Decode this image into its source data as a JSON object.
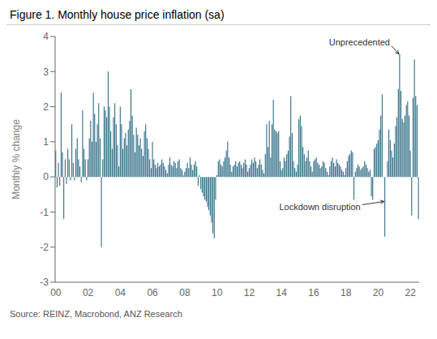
{
  "chart_data": {
    "type": "bar",
    "title": "Figure 1.  Monthly house price inflation (sa)",
    "ylabel": "Monthly % change",
    "source": "Source: REINZ, Macrobond, ANZ Research",
    "color": "#1c5f7a",
    "grid": false,
    "ylim": [
      -3,
      4
    ],
    "yticks": [
      -3,
      -2,
      -1,
      0,
      1,
      2,
      3,
      4
    ],
    "categories": [
      "00",
      null,
      null,
      null,
      null,
      null,
      null,
      null,
      null,
      null,
      null,
      null,
      null,
      null,
      null,
      null,
      null,
      null,
      null,
      null,
      null,
      null,
      null,
      null,
      "02",
      null,
      null,
      null,
      null,
      null,
      null,
      null,
      null,
      null,
      null,
      null,
      null,
      null,
      null,
      null,
      null,
      null,
      null,
      null,
      null,
      null,
      null,
      null,
      "04",
      null,
      null,
      null,
      null,
      null,
      null,
      null,
      null,
      null,
      null,
      null,
      null,
      null,
      null,
      null,
      null,
      null,
      null,
      null,
      null,
      null,
      null,
      null,
      "06",
      null,
      null,
      null,
      null,
      null,
      null,
      null,
      null,
      null,
      null,
      null,
      null,
      null,
      null,
      null,
      null,
      null,
      null,
      null,
      null,
      null,
      null,
      null,
      "08",
      null,
      null,
      null,
      null,
      null,
      null,
      null,
      null,
      null,
      null,
      null,
      null,
      null,
      null,
      null,
      null,
      null,
      null,
      null,
      null,
      null,
      null,
      null,
      "10",
      null,
      null,
      null,
      null,
      null,
      null,
      null,
      null,
      null,
      null,
      null,
      null,
      null,
      null,
      null,
      null,
      null,
      null,
      null,
      null,
      null,
      null,
      null,
      "12",
      null,
      null,
      null,
      null,
      null,
      null,
      null,
      null,
      null,
      null,
      null,
      null,
      null,
      null,
      null,
      null,
      null,
      null,
      null,
      null,
      null,
      null,
      null,
      "14",
      null,
      null,
      null,
      null,
      null,
      null,
      null,
      null,
      null,
      null,
      null,
      null,
      null,
      null,
      null,
      null,
      null,
      null,
      null,
      null,
      null,
      null,
      null,
      "16",
      null,
      null,
      null,
      null,
      null,
      null,
      null,
      null,
      null,
      null,
      null,
      null,
      null,
      null,
      null,
      null,
      null,
      null,
      null,
      null,
      null,
      null,
      null,
      "18",
      null,
      null,
      null,
      null,
      null,
      null,
      null,
      null,
      null,
      null,
      null,
      null,
      null,
      null,
      null,
      null,
      null,
      null,
      null,
      null,
      null,
      null,
      null,
      "20",
      null,
      null,
      null,
      null,
      null,
      null,
      null,
      null,
      null,
      null,
      null,
      null,
      null,
      null,
      null,
      null,
      null,
      null,
      null,
      null,
      null,
      null,
      null,
      "22",
      null,
      null,
      null,
      null,
      null,
      null
    ],
    "values": [
      0.75,
      -0.3,
      0.4,
      -0.25,
      2.4,
      0.7,
      -1.2,
      0.5,
      -0.2,
      0.8,
      0.5,
      -0.1,
      1.5,
      0.4,
      -0.1,
      0.8,
      1.1,
      0.5,
      0.3,
      -0.15,
      1.9,
      0.8,
      0.5,
      -0.1,
      0.5,
      1.1,
      1.6,
      1.0,
      2.4,
      1.8,
      1.0,
      1.5,
      2.1,
      1.1,
      -2.0,
      0.5,
      2.0,
      1.9,
      1.7,
      3.0,
      2.0,
      1.3,
      0.8,
      1.7,
      2.1,
      1.5,
      0.9,
      0.3,
      2.0,
      1.5,
      0.8,
      1.1,
      1.25,
      0.9,
      1.35,
      1.6,
      2.5,
      1.75,
      1.2,
      0.7,
      1.4,
      1.2,
      0.9,
      1.1,
      0.8,
      0.6,
      1.3,
      1.5,
      1.1,
      0.8,
      0.5,
      0.25,
      1.0,
      0.5,
      0.35,
      0.25,
      0.4,
      0.3,
      0.35,
      0.5,
      0.4,
      0.3,
      0.2,
      0.1,
      0.35,
      0.55,
      0.35,
      0.3,
      0.45,
      0.4,
      0.25,
      0.45,
      0.5,
      0.25,
      0.2,
      0.05,
      0.15,
      0.25,
      0.4,
      0.25,
      0.55,
      0.35,
      0.2,
      0.35,
      0.45,
      0.3,
      -0.25,
      0.05,
      -0.35,
      -0.45,
      -0.55,
      -0.65,
      -0.7,
      -0.85,
      -0.95,
      -1.1,
      -1.3,
      -1.6,
      -1.75,
      -0.65,
      0.05,
      0.45,
      0.5,
      0.35,
      0.3,
      0.45,
      0.55,
      0.75,
      1.0,
      0.55,
      0.35,
      0.15,
      0.3,
      0.35,
      0.45,
      0.3,
      0.4,
      0.45,
      0.35,
      0.25,
      0.4,
      0.5,
      0.35,
      0.15,
      0.25,
      0.35,
      0.5,
      0.4,
      0.55,
      0.45,
      0.25,
      0.35,
      0.5,
      0.35,
      0.2,
      0.1,
      0.65,
      1.5,
      0.85,
      1.6,
      0.55,
      1.5,
      2.2,
      1.35,
      1.3,
      1.25,
      1.3,
      0.45,
      0.2,
      0.25,
      0.55,
      0.45,
      0.65,
      0.75,
      1.15,
      2.3,
      1.25,
      0.45,
      0.25,
      0.15,
      0.35,
      1.65,
      1.75,
      1.45,
      0.85,
      0.65,
      0.45,
      0.55,
      0.75,
      0.45,
      0.3,
      0.15,
      0.45,
      0.5,
      0.55,
      0.4,
      0.35,
      0.25,
      0.3,
      0.45,
      0.4,
      0.25,
      0.15,
      0.05,
      0.3,
      0.45,
      0.55,
      0.4,
      0.3,
      0.5,
      0.4,
      0.35,
      0.3,
      0.2,
      0.15,
      0.05,
      0.25,
      0.45,
      0.6,
      0.65,
      0.75,
      0.7,
      -0.65,
      0.15,
      0.25,
      0.35,
      0.3,
      0.2,
      0.25,
      0.3,
      0.45,
      0.35,
      0.25,
      0.15,
      0.2,
      -0.55,
      -0.65,
      0.8,
      0.85,
      0.95,
      1.05,
      1.35,
      1.75,
      2.35,
      0.0,
      -1.7,
      0.0,
      0.45,
      1.35,
      1.05,
      0.75,
      0.55,
      0.95,
      1.45,
      1.7,
      2.5,
      3.5,
      2.45,
      1.65,
      1.55,
      1.75,
      2.05,
      2.15,
      1.75,
      0.75,
      -1.1,
      2.25,
      3.35,
      2.3,
      2.05,
      -1.2
    ],
    "annotations": [
      {
        "text": "Unprecedented",
        "x": 256,
        "y": 3.5
      },
      {
        "text": "Lockdown disruption",
        "x": 245,
        "y": -0.7
      }
    ]
  }
}
